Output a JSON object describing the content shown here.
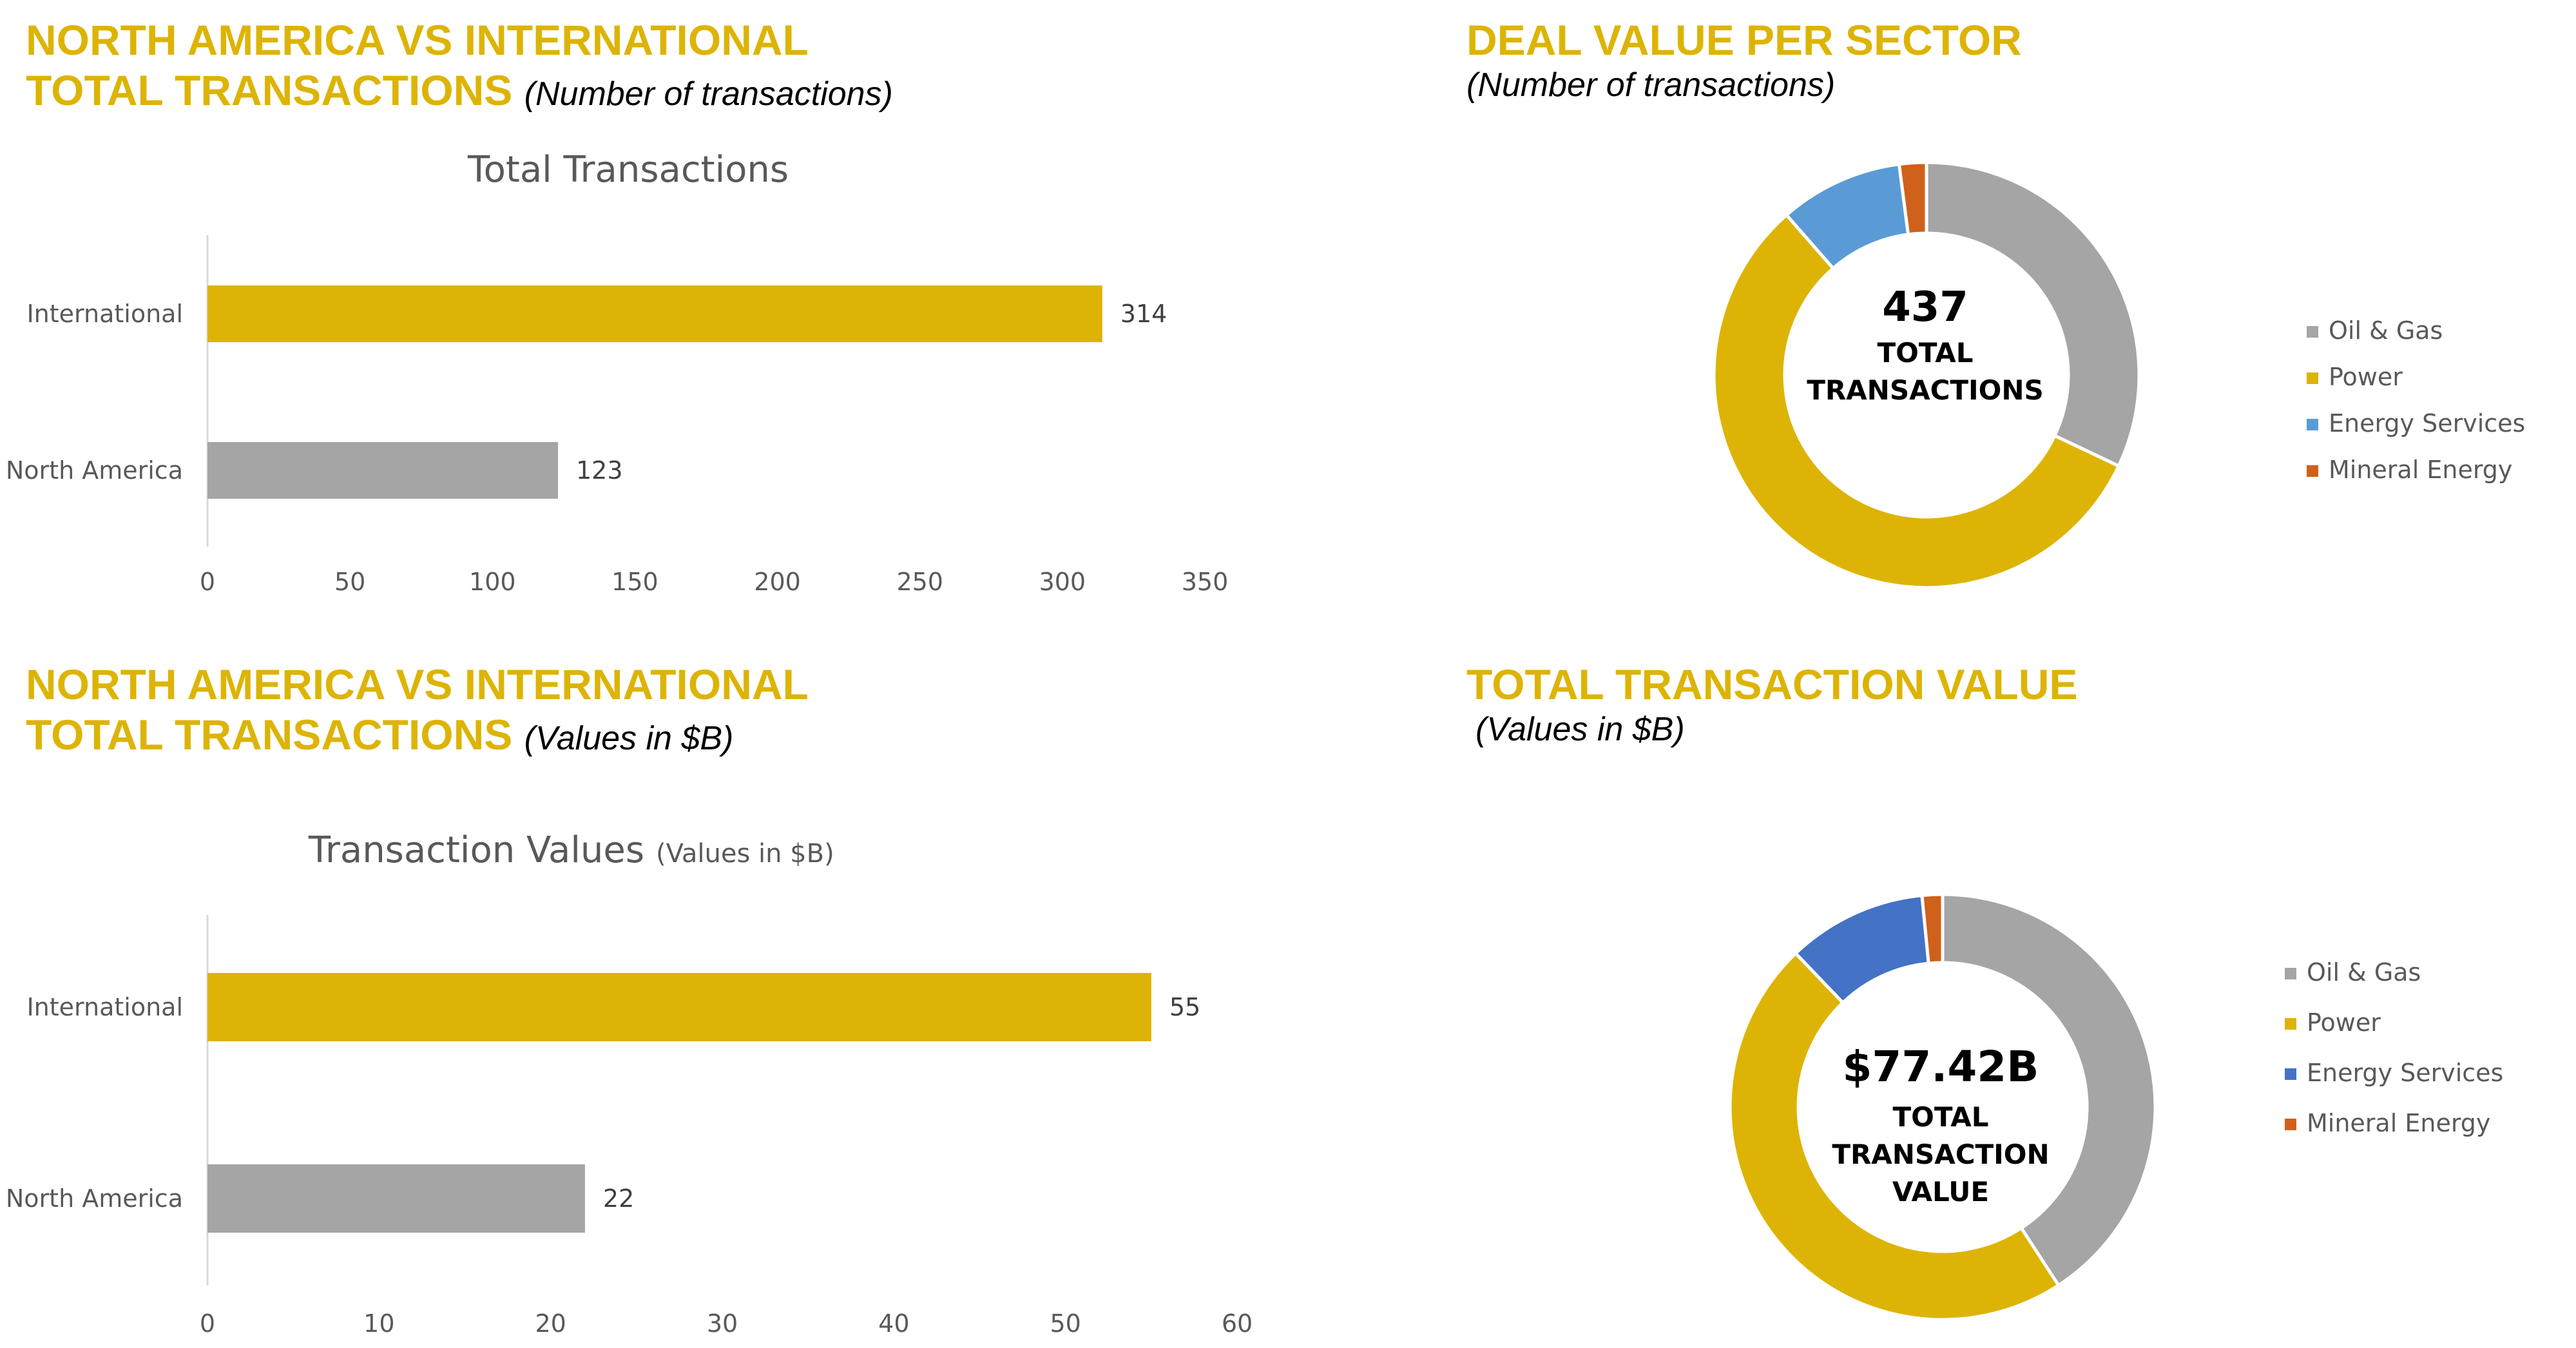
{
  "panels": {
    "top_left": {
      "heading_line1": "NORTH AMERICA VS INTERNATIONAL",
      "heading_line2": "TOTAL TRANSACTIONS",
      "heading_sub": "(Number of transactions)"
    },
    "top_right": {
      "heading": "DEAL VALUE PER SECTOR",
      "heading_sub": "(Number of transactions)"
    },
    "bottom_left": {
      "heading_line1": "NORTH AMERICA VS INTERNATIONAL",
      "heading_line2": "TOTAL TRANSACTIONS",
      "heading_sub": "(Values in $B)"
    },
    "bottom_right": {
      "heading": "TOTAL TRANSACTION VALUE",
      "heading_sub": "(Values in $B)"
    }
  },
  "colors": {
    "heading": "#DDB405",
    "gold": "#DDB405",
    "gray": "#A5A5A5",
    "light_blue": "#5B9BD5",
    "blue": "#4472C4",
    "orange": "#D0611A",
    "axis": "#D9D9D9",
    "text": "#595959"
  },
  "chart_data": [
    {
      "type": "bar",
      "orientation": "horizontal",
      "title": "Total Transactions",
      "categories": [
        "International",
        "North America"
      ],
      "values": [
        314,
        123
      ],
      "value_labels": [
        "314",
        "123"
      ],
      "bar_colors": [
        "#DDB405",
        "#A5A5A5"
      ],
      "xlim": [
        0,
        350
      ],
      "x_ticks": [
        "0",
        "50",
        "100",
        "150",
        "200",
        "250",
        "300",
        "350"
      ],
      "grid": false,
      "legend": "none"
    },
    {
      "type": "pie",
      "donut": true,
      "labels": [
        "Oil & Gas",
        "Power",
        "Energy Services",
        "Mineral Energy"
      ],
      "values": [
        140,
        247,
        41,
        9
      ],
      "colors": [
        "#A5A5A5",
        "#DDB405",
        "#5B9BD5",
        "#D0611A"
      ],
      "center_value": "437",
      "center_label_lines": [
        "TOTAL",
        "TRANSACTIONS"
      ],
      "legend": "right"
    },
    {
      "type": "bar",
      "orientation": "horizontal",
      "title": "Transaction Values",
      "title_suffix": "(Values in $B)",
      "categories": [
        "International",
        "North America"
      ],
      "values": [
        55,
        22
      ],
      "value_labels": [
        "55",
        "22"
      ],
      "bar_colors": [
        "#DDB405",
        "#A5A5A5"
      ],
      "xlim": [
        0,
        60
      ],
      "x_ticks": [
        "0",
        "10",
        "20",
        "30",
        "40",
        "50",
        "60"
      ],
      "grid": false,
      "legend": "none"
    },
    {
      "type": "pie",
      "donut": true,
      "labels": [
        "Oil & Gas",
        "Power",
        "Energy Services",
        "Mineral Energy"
      ],
      "values": [
        31.6,
        36.4,
        8.2,
        1.2
      ],
      "colors": [
        "#A5A5A5",
        "#DDB405",
        "#4472C4",
        "#D0611A"
      ],
      "center_value": "$77.42B",
      "center_label_lines": [
        "TOTAL",
        "TRANSACTION",
        "VALUE"
      ],
      "legend": "right"
    }
  ]
}
